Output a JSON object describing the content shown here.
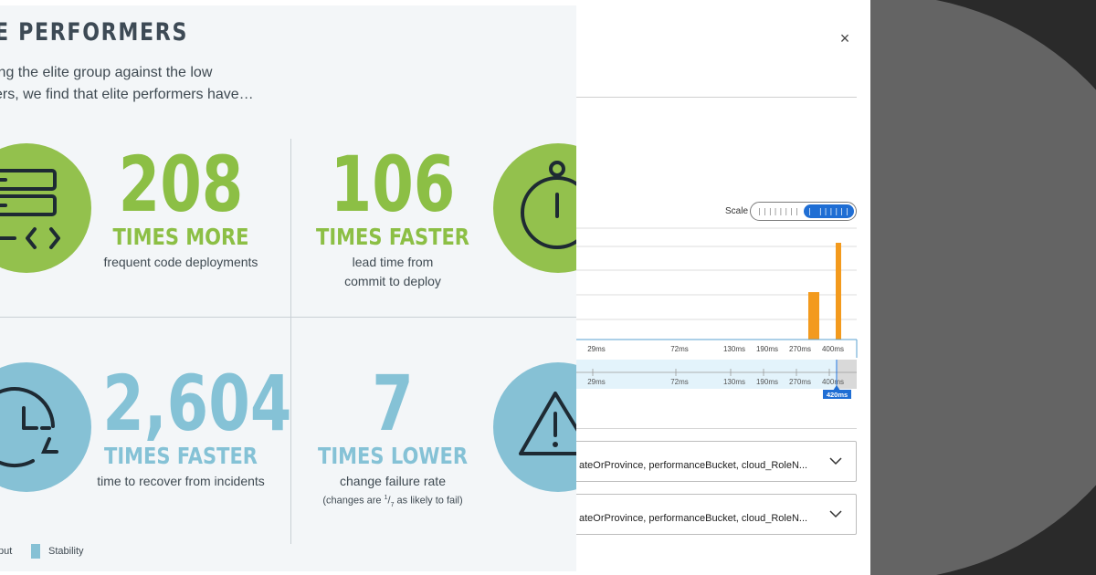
{
  "infographic": {
    "title": "E PERFORMERS",
    "intro_line1": "ing the elite group against the low",
    "intro_line2": "ers, we find that elite performers have…",
    "stats": [
      {
        "number": "208",
        "unit": "TIMES MORE",
        "desc1": "frequent code deployments",
        "desc2": ""
      },
      {
        "number": "106",
        "unit": "TIMES FASTER",
        "desc1": "lead time from",
        "desc2": "commit to deploy"
      },
      {
        "number": "2,604",
        "unit": "TIMES FASTER",
        "desc1": "time to recover from incidents",
        "desc2": ""
      },
      {
        "number": "7",
        "unit": "TIMES LOWER",
        "desc1": "change failure rate",
        "note_pre": "(changes are",
        "note_frac_num": "1",
        "note_frac_den": "7",
        "note_post": "as likely to fail)"
      }
    ],
    "legend": {
      "item1": "put",
      "item2": "Stability"
    },
    "colors": {
      "green": "#93c14d",
      "blue": "#86c1d5",
      "text": "#3f4a52"
    },
    "icons": [
      "server-code-icon",
      "stopwatch-icon",
      "clock-refresh-icon",
      "warning-triangle-icon"
    ]
  },
  "panel": {
    "close": "×",
    "scale_label": "Scale",
    "scale_options": {
      "linear": "||||||||",
      "log": "| ||||||"
    },
    "selected_scale": "log",
    "chart_data": {
      "type": "bar",
      "x_ticks": [
        "29ms",
        "72ms",
        "130ms",
        "190ms",
        "270ms",
        "400ms"
      ],
      "bars": [
        {
          "x": "270ms",
          "relative_height": 0.49
        },
        {
          "x": "400ms",
          "relative_height": 1.0
        }
      ],
      "bar_color": "#f39a1d",
      "brush_ticks": [
        "29ms",
        "72ms",
        "130ms",
        "190ms",
        "270ms",
        "400ms"
      ],
      "brush_marker": "420ms"
    },
    "dropdowns": [
      {
        "text": "ateOrProvince, performanceBucket, cloud_RoleN..."
      },
      {
        "text": "ateOrProvince, performanceBucket, cloud_RoleN..."
      }
    ]
  }
}
